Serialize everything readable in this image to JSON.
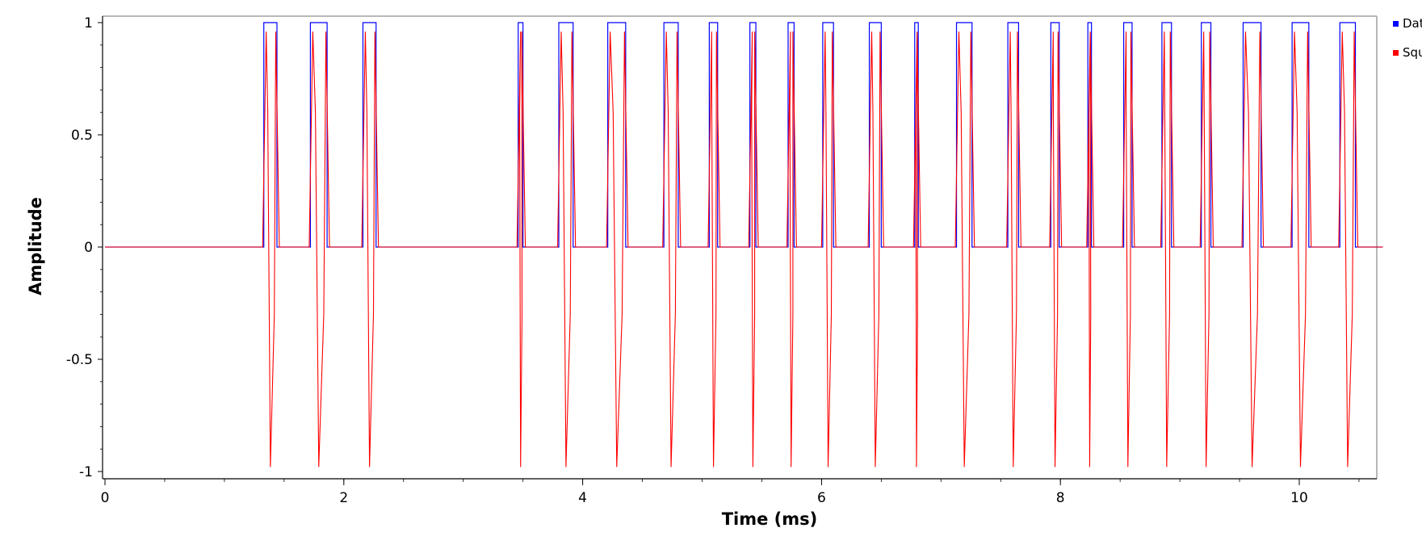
{
  "chart_data": {
    "type": "line",
    "title": "",
    "xlabel": "Time (ms)",
    "ylabel": "Amplitude",
    "xlim": [
      0,
      10.7
    ],
    "ylim": [
      -1,
      1
    ],
    "x_ticks": [
      "0",
      "2",
      "4",
      "6",
      "8",
      "10"
    ],
    "y_ticks": [
      "1",
      "0.5",
      "0",
      "-0.5",
      "-1"
    ],
    "grid": false,
    "legend_position": "right",
    "series": [
      {
        "name": "Dat",
        "color": "#0000ff",
        "pulses": [
          [
            1.33,
            1.44
          ],
          [
            1.72,
            1.86
          ],
          [
            2.16,
            2.27
          ],
          [
            3.46,
            3.5
          ],
          [
            3.8,
            3.92
          ],
          [
            4.21,
            4.36
          ],
          [
            4.68,
            4.8
          ],
          [
            5.06,
            5.13
          ],
          [
            5.4,
            5.45
          ],
          [
            5.72,
            5.77
          ],
          [
            6.01,
            6.1
          ],
          [
            6.4,
            6.5
          ],
          [
            6.78,
            6.81
          ],
          [
            7.13,
            7.26
          ],
          [
            7.56,
            7.65
          ],
          [
            7.92,
            7.99
          ],
          [
            8.23,
            8.26
          ],
          [
            8.53,
            8.6
          ],
          [
            8.85,
            8.93
          ],
          [
            9.18,
            9.26
          ],
          [
            9.53,
            9.68
          ],
          [
            9.94,
            10.08
          ],
          [
            10.34,
            10.47
          ]
        ]
      },
      {
        "name": "Squ",
        "color": "#ff0000",
        "pulses": [
          [
            1.33,
            1.44
          ],
          [
            1.72,
            1.86
          ],
          [
            2.16,
            2.27
          ],
          [
            3.46,
            3.5
          ],
          [
            3.8,
            3.92
          ],
          [
            4.21,
            4.36
          ],
          [
            4.68,
            4.8
          ],
          [
            5.06,
            5.13
          ],
          [
            5.4,
            5.45
          ],
          [
            5.72,
            5.77
          ],
          [
            6.01,
            6.1
          ],
          [
            6.4,
            6.5
          ],
          [
            6.78,
            6.81
          ],
          [
            7.13,
            7.26
          ],
          [
            7.56,
            7.65
          ],
          [
            7.92,
            7.99
          ],
          [
            8.23,
            8.26
          ],
          [
            8.53,
            8.6
          ],
          [
            8.85,
            8.93
          ],
          [
            9.18,
            9.26
          ],
          [
            9.53,
            9.68
          ],
          [
            9.94,
            10.08
          ],
          [
            10.34,
            10.47
          ]
        ]
      }
    ]
  }
}
